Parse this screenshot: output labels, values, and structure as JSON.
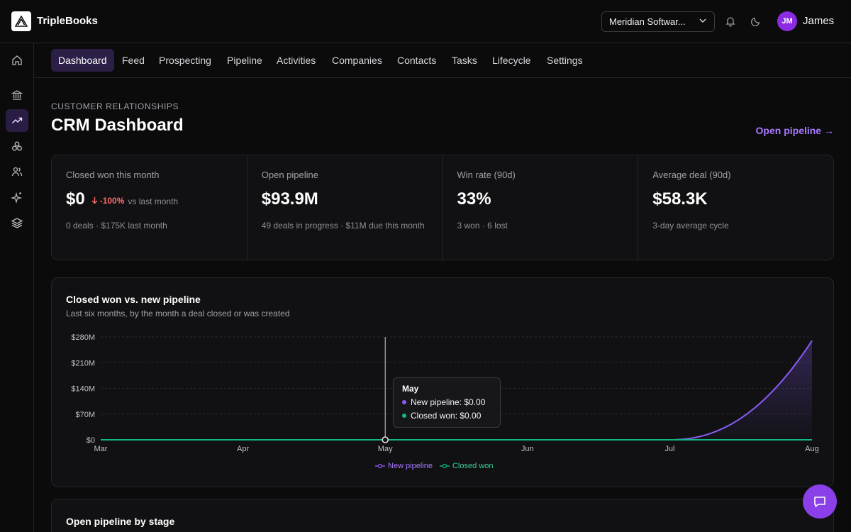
{
  "app": {
    "name": "TripleBooks"
  },
  "header": {
    "org_select": "Meridian Softwar...",
    "user_initials": "JM",
    "user_name": "James"
  },
  "sidebar": {
    "items": [
      {
        "icon": "home-icon"
      },
      {
        "icon": "bank-icon"
      },
      {
        "icon": "trending-up-icon",
        "active": true
      },
      {
        "icon": "boxes-icon"
      },
      {
        "icon": "users-icon"
      },
      {
        "icon": "sparkles-icon"
      },
      {
        "icon": "layers-icon"
      }
    ]
  },
  "tabs": [
    "Dashboard",
    "Feed",
    "Prospecting",
    "Pipeline",
    "Activities",
    "Companies",
    "Contacts",
    "Tasks",
    "Lifecycle",
    "Settings"
  ],
  "active_tab": "Dashboard",
  "page": {
    "eyebrow": "CUSTOMER RELATIONSHIPS",
    "title": "CRM Dashboard",
    "link": "Open pipeline →"
  },
  "stats": [
    {
      "label": "Closed won this month",
      "value": "$0",
      "change": "-100%",
      "vs": "vs last month",
      "note": "0 deals · $175K last month"
    },
    {
      "label": "Open pipeline",
      "value": "$93.9M",
      "note": "49 deals in progress · $11M due this month"
    },
    {
      "label": "Win rate (90d)",
      "value": "33%",
      "note": "3 won · 6 lost"
    },
    {
      "label": "Average deal (90d)",
      "value": "$58.3K",
      "note": "3-day average cycle"
    }
  ],
  "chart_card": {
    "title": "Closed won vs. new pipeline",
    "subtitle": "Last six months, by the month a deal closed or was created"
  },
  "chart_data": {
    "type": "area",
    "categories": [
      "Mar",
      "Apr",
      "May",
      "Jun",
      "Jul",
      "Aug"
    ],
    "y_ticks": [
      "$0",
      "$70M",
      "$140M",
      "$210M",
      "$280M"
    ],
    "ylim": [
      0,
      280
    ],
    "series": [
      {
        "name": "New pipeline",
        "values": [
          0,
          0,
          0,
          0,
          0,
          270
        ],
        "color": "#8b5cf6"
      },
      {
        "name": "Closed won",
        "values": [
          0,
          0,
          0,
          0,
          0,
          0
        ],
        "color": "#10b981"
      }
    ],
    "grid": true,
    "legend": "bottom"
  },
  "tooltip": {
    "title": "May",
    "row1": "New pipeline: $0.00",
    "row2": "Closed won: $0.00"
  },
  "stage_card": {
    "title": "Open pipeline by stage"
  },
  "colors": {
    "accent": "#8b5cf6",
    "won": "#10b981",
    "negative": "#ff6b6b"
  }
}
